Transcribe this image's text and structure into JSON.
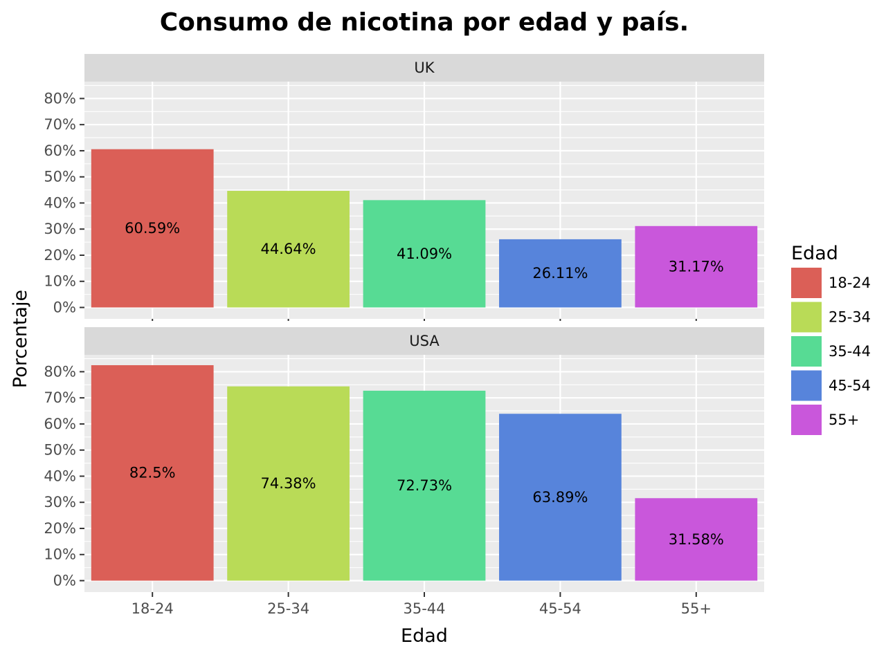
{
  "chart_data": {
    "type": "bar",
    "title": "Consumo de nicotina por edad y país.",
    "xlabel": "Edad",
    "ylabel": "Porcentaje",
    "categories": [
      "18-24",
      "25-34",
      "35-44",
      "45-54",
      "55+"
    ],
    "colors": [
      "#db5f57",
      "#b9db57",
      "#57db94",
      "#5784db",
      "#c957db"
    ],
    "ylim": [
      0,
      86
    ],
    "yticks": [
      0,
      10,
      20,
      30,
      40,
      50,
      60,
      70,
      80
    ],
    "ytick_labels": [
      "0%",
      "10%",
      "20%",
      "30%",
      "40%",
      "50%",
      "60%",
      "70%",
      "80%"
    ],
    "grid": true,
    "legend": {
      "title": "Edad",
      "placement": "right",
      "entries": [
        "18-24",
        "25-34",
        "35-44",
        "45-54",
        "55+"
      ]
    },
    "facets": [
      {
        "label": "UK",
        "values": [
          60.59,
          44.64,
          41.09,
          26.11,
          31.17
        ],
        "value_labels": [
          "60.59%",
          "44.64%",
          "41.09%",
          "26.11%",
          "31.17%"
        ]
      },
      {
        "label": "USA",
        "values": [
          82.5,
          74.38,
          72.73,
          63.89,
          31.58
        ],
        "value_labels": [
          "82.5%",
          "74.38%",
          "72.73%",
          "63.89%",
          "31.58%"
        ]
      }
    ]
  }
}
